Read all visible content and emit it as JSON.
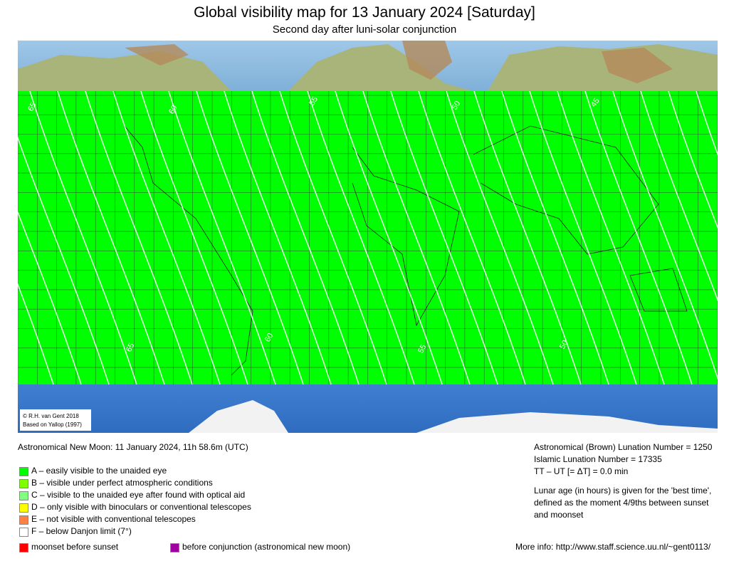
{
  "header": {
    "title": "Global visibility map for 13 January 2024 [Saturday]",
    "subtitle": "Second day after luni-solar conjunction"
  },
  "map": {
    "band_color": "#00ff00",
    "copyright": [
      "© R.H. van Gent 2018",
      "Based on Yallop (1997)"
    ],
    "contour_labels_top": [
      "65",
      "60",
      "55",
      "50",
      "45"
    ],
    "contour_labels_bottom": [
      "65",
      "60",
      "55",
      "50"
    ]
  },
  "info": {
    "new_moon": "Astronomical New Moon: 11 January 2024, 11h 58.6m (UTC)",
    "brown_lunation": "Astronomical (Brown) Lunation Number = 1250",
    "islamic_lunation": "Islamic Lunation Number = 17335",
    "delta_t": "TT – UT [= ΔT] = 0.0 min",
    "lunar_age": [
      "Lunar age (in hours) is given for the 'best time',",
      "defined as the moment 4/9ths between sunset",
      "and moonset"
    ],
    "more_info": "More info: http://www.staff.science.uu.nl/~gent0113/"
  },
  "legend": [
    {
      "color": "#00ff00",
      "label": "A – easily visible to the unaided eye"
    },
    {
      "color": "#80ff00",
      "label": "B – visible under perfect atmospheric conditions"
    },
    {
      "color": "#80ff80",
      "label": "C – visible to the unaided eye after found with optical aid"
    },
    {
      "color": "#ffff00",
      "label": "D – only visible with binoculars or conventional telescopes"
    },
    {
      "color": "#ff8040",
      "label": "E – not visible with conventional telescopes"
    },
    {
      "color": "#ffffff",
      "label": "F – below Danjon limit (7°)"
    }
  ],
  "extra_legend": [
    {
      "color": "#ff0000",
      "label": "moonset before sunset"
    },
    {
      "color": "#a000a0",
      "label": "before conjunction (astronomical new moon)"
    }
  ]
}
